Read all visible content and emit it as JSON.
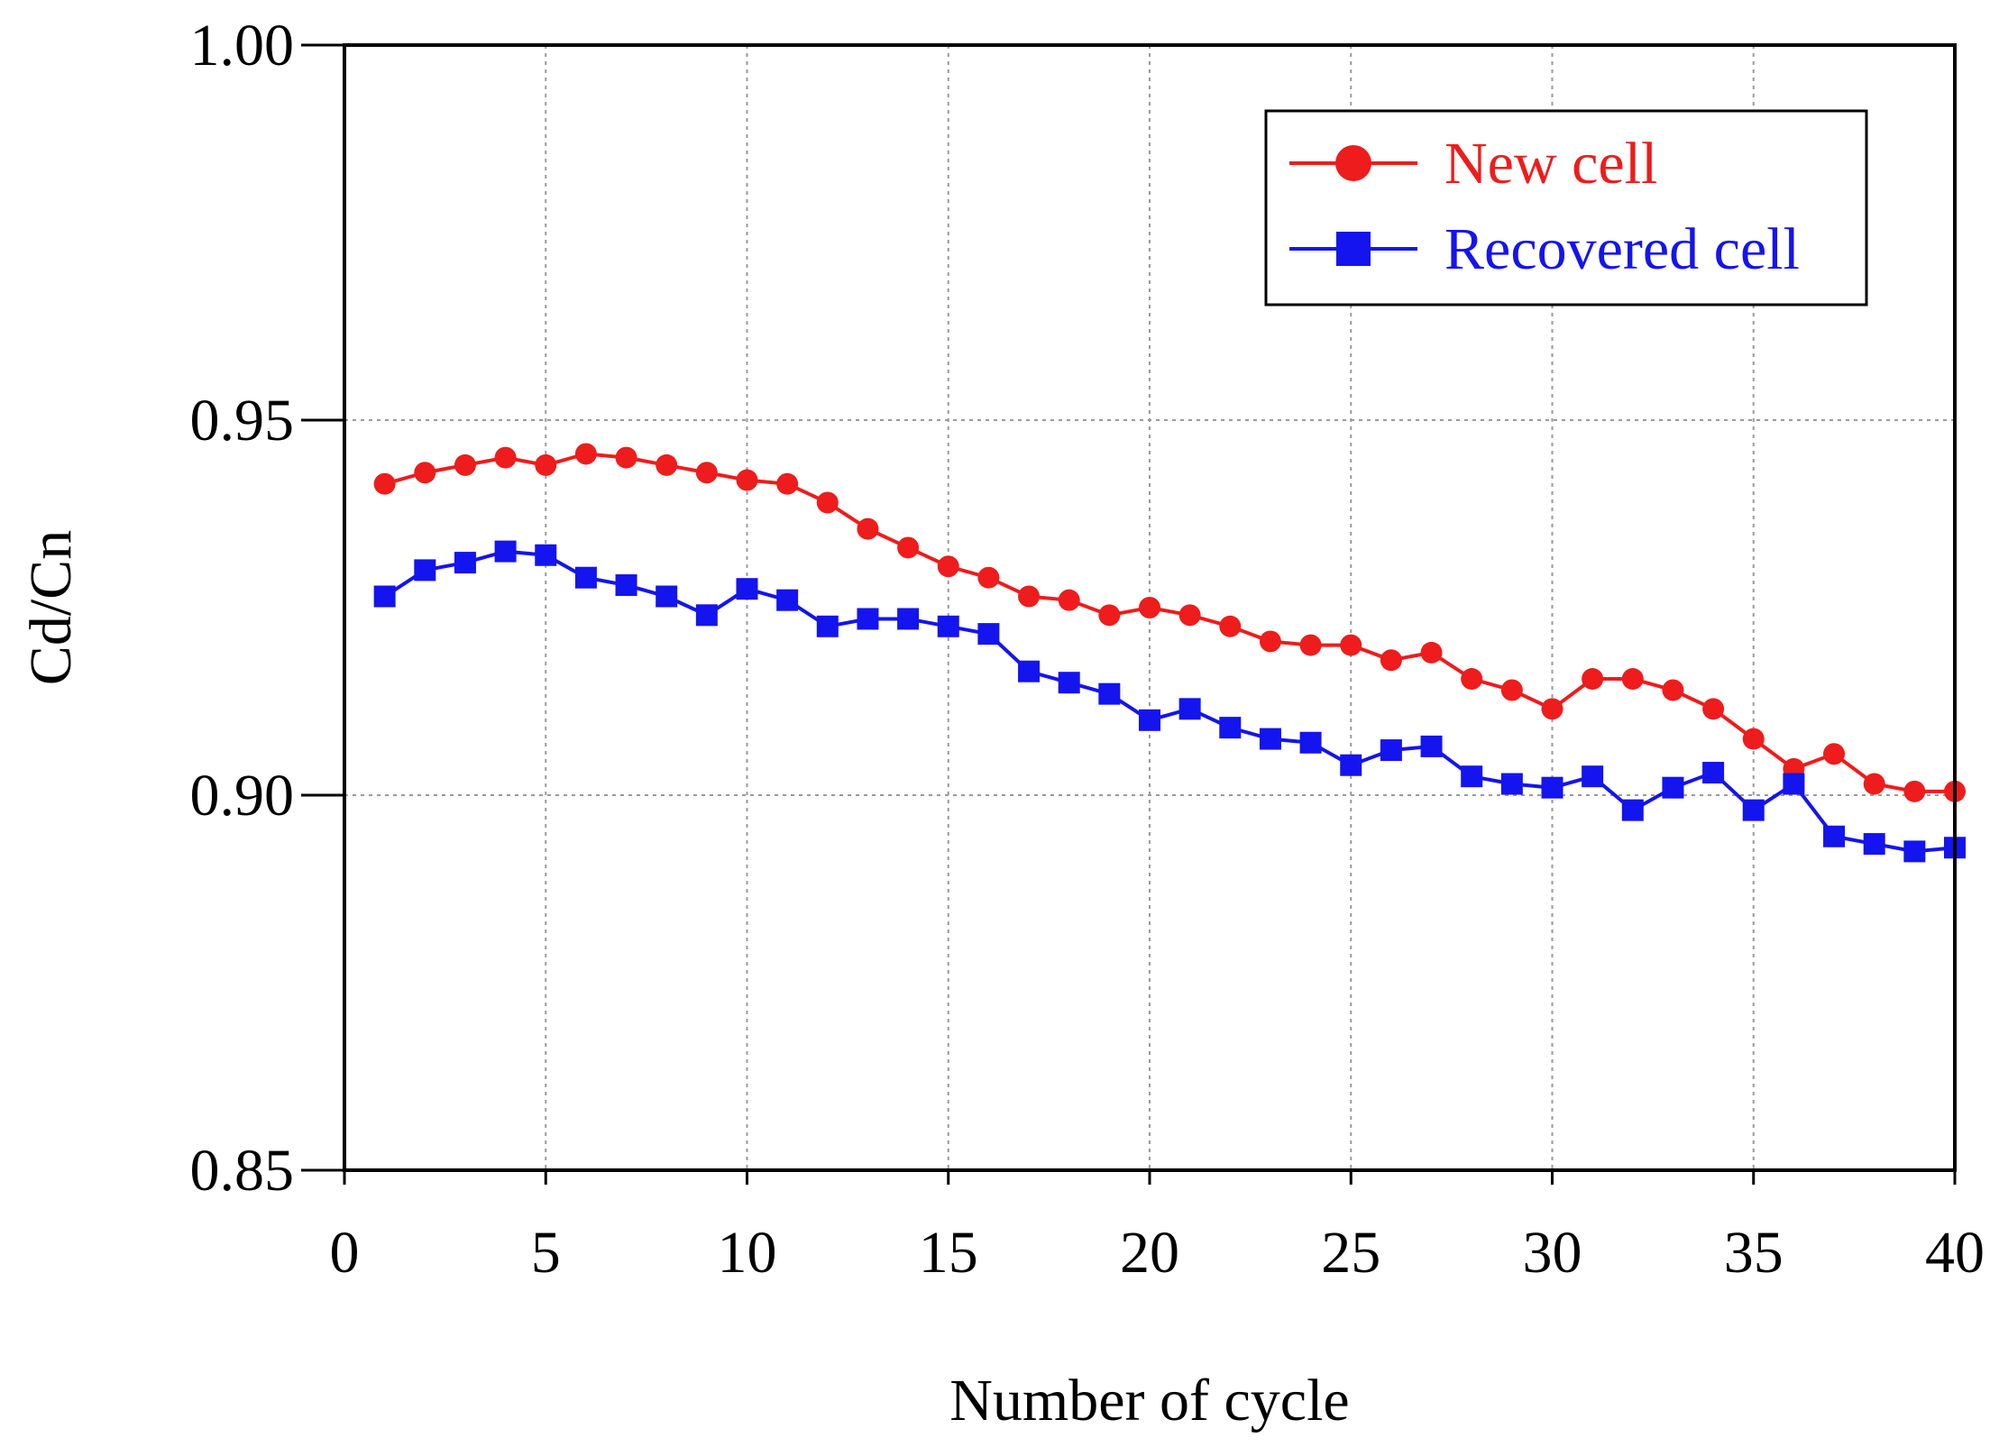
{
  "chart_data": {
    "type": "line",
    "title": "",
    "xlabel": "Number of cycle",
    "ylabel": "Cd/Cn",
    "xlim": [
      0,
      40
    ],
    "ylim": [
      0.85,
      1.0
    ],
    "xticks": [
      0,
      5,
      10,
      15,
      20,
      25,
      30,
      35,
      40
    ],
    "xtick_labels": [
      "0",
      "5",
      "10",
      "15",
      "20",
      "25",
      "30",
      "35",
      "40"
    ],
    "yticks": [
      0.85,
      0.9,
      0.95,
      1.0
    ],
    "ytick_labels": [
      "0.85",
      "0.90",
      "0.95",
      "1.00"
    ],
    "grid": true,
    "legend_position": "top-right",
    "x": [
      1,
      2,
      3,
      4,
      5,
      6,
      7,
      8,
      9,
      10,
      11,
      12,
      13,
      14,
      15,
      16,
      17,
      18,
      19,
      20,
      21,
      22,
      23,
      24,
      25,
      26,
      27,
      28,
      29,
      30,
      31,
      32,
      33,
      34,
      35,
      36,
      37,
      38,
      39,
      40
    ],
    "series": [
      {
        "name": "New cell",
        "color": "#ee1c1c",
        "marker": "circle",
        "values": [
          0.9415,
          0.943,
          0.944,
          0.945,
          0.944,
          0.9455,
          0.945,
          0.944,
          0.943,
          0.942,
          0.9415,
          0.939,
          0.9355,
          0.933,
          0.9305,
          0.929,
          0.9265,
          0.926,
          0.924,
          0.925,
          0.924,
          0.9225,
          0.9205,
          0.92,
          0.92,
          0.918,
          0.919,
          0.9155,
          0.914,
          0.9115,
          0.9155,
          0.9155,
          0.914,
          0.9115,
          0.9075,
          0.9035,
          0.9055,
          0.9015,
          0.9005,
          0.9005
        ]
      },
      {
        "name": "Recovered cell",
        "color": "#1414ee",
        "marker": "square",
        "values": [
          0.9265,
          0.93,
          0.931,
          0.9325,
          0.932,
          0.929,
          0.928,
          0.9265,
          0.924,
          0.9275,
          0.926,
          0.9225,
          0.9235,
          0.9235,
          0.9225,
          0.9215,
          0.9165,
          0.915,
          0.9135,
          0.91,
          0.9115,
          0.909,
          0.9075,
          0.907,
          0.904,
          0.906,
          0.9065,
          0.9025,
          0.9015,
          0.901,
          0.9025,
          0.898,
          0.901,
          0.903,
          0.898,
          0.9015,
          0.8945,
          0.8935,
          0.8925,
          0.893
        ]
      }
    ]
  }
}
